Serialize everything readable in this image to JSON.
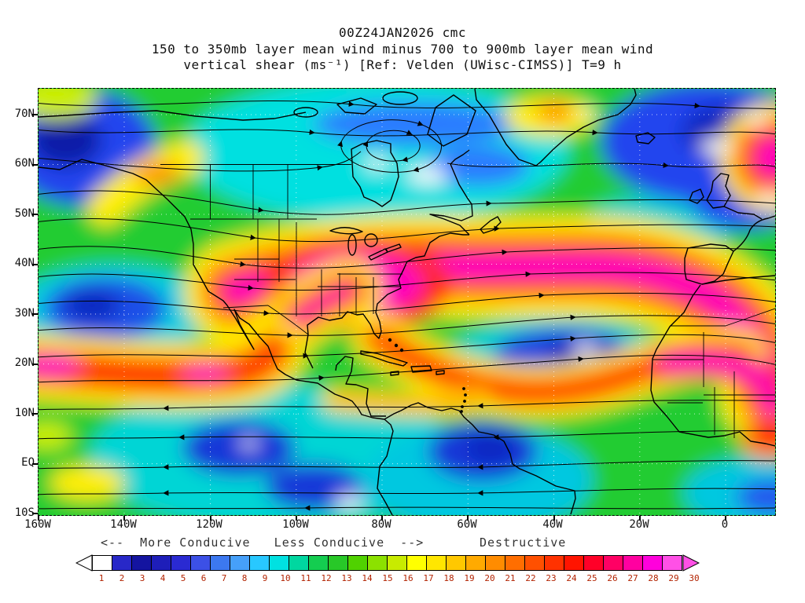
{
  "header": {
    "line1": "00Z24JAN2026 cmc",
    "line2": "150 to 350mb layer mean wind minus 700 to 900mb layer mean wind",
    "line3": "vertical shear (ms⁻¹) [Ref: Velden (UWisc-CIMSS)] T=9 h"
  },
  "map": {
    "lat_ticks": [
      "70N",
      "60N",
      "50N",
      "40N",
      "30N",
      "20N",
      "10N",
      "EQ",
      "10S"
    ],
    "lon_ticks": [
      "160W",
      "140W",
      "120W",
      "100W",
      "80W",
      "60W",
      "40W",
      "20W",
      "0"
    ]
  },
  "legend": {
    "conducive": "<--  More Conducive   Less Conducive  -->",
    "destructive": "Destructive"
  },
  "colorbar": {
    "values": [
      "1",
      "2",
      "3",
      "4",
      "5",
      "6",
      "7",
      "8",
      "9",
      "10",
      "11",
      "12",
      "13",
      "14",
      "15",
      "16",
      "17",
      "18",
      "19",
      "20",
      "21",
      "22",
      "23",
      "24",
      "25",
      "26",
      "27",
      "28",
      "29",
      "30"
    ],
    "colors": [
      "#ffffff",
      "#2828c8",
      "#1414a0",
      "#1e1eb9",
      "#2a2ad2",
      "#3c50e6",
      "#3c78f0",
      "#46a0fa",
      "#28c8ff",
      "#00e1e1",
      "#00d7a0",
      "#14cd50",
      "#28c828",
      "#50d200",
      "#8ce100",
      "#c8eb00",
      "#ffff00",
      "#ffe600",
      "#ffc800",
      "#ffaa00",
      "#ff8c00",
      "#ff6e00",
      "#ff5000",
      "#ff3200",
      "#ff1400",
      "#ff0028",
      "#ff0064",
      "#ff00a0",
      "#ff00dc",
      "#ff50e6"
    ],
    "left_arrow_color": "#ffffff",
    "right_arrow_color": "#ff50e6"
  },
  "chart_data": {
    "type": "heatmap",
    "title": "150 to 350mb layer mean wind minus 700 to 900mb layer mean wind vertical shear (ms⁻¹)",
    "run": "00Z24JAN2026",
    "model": "cmc",
    "forecast_hour": "T=9 h",
    "reference": "Velden (UWisc-CIMSS)",
    "units": "ms⁻¹",
    "x_axis": {
      "label": "longitude",
      "ticks": [
        "160W",
        "140W",
        "120W",
        "100W",
        "80W",
        "60W",
        "40W",
        "20W",
        "0"
      ],
      "range_deg_east": [
        -160,
        11
      ]
    },
    "y_axis": {
      "label": "latitude",
      "ticks": [
        "70N",
        "60N",
        "50N",
        "40N",
        "30N",
        "20N",
        "10N",
        "EQ",
        "10S"
      ],
      "range_deg_north": [
        -10,
        75
      ]
    },
    "scale": {
      "min": 1,
      "max": 30,
      "values": [
        1,
        2,
        3,
        4,
        5,
        6,
        7,
        8,
        9,
        10,
        11,
        12,
        13,
        14,
        15,
        16,
        17,
        18,
        19,
        20,
        21,
        22,
        23,
        24,
        25,
        26,
        27,
        28,
        29,
        30
      ],
      "colors": [
        "#ffffff",
        "#2828c8",
        "#1414a0",
        "#1e1eb9",
        "#2a2ad2",
        "#3c50e6",
        "#3c78f0",
        "#46a0fa",
        "#28c8ff",
        "#00e1e1",
        "#00d7a0",
        "#14cd50",
        "#28c828",
        "#50d200",
        "#8ce100",
        "#c8eb00",
        "#ffff00",
        "#ffe600",
        "#ffc800",
        "#ffaa00",
        "#ff8c00",
        "#ff6e00",
        "#ff5000",
        "#ff3200",
        "#ff1400",
        "#ff0028",
        "#ff0064",
        "#ff00a0",
        "#ff00dc",
        "#ff50e6"
      ]
    },
    "regime_annotations": [
      {
        "label": "<-- More Conducive",
        "applies_to_values": "1-9"
      },
      {
        "label": "Less Conducive -->",
        "applies_to_values": "10-17"
      },
      {
        "label": "Destructive",
        "applies_to_values": "18-30"
      }
    ],
    "overlay": "layer-shear streamlines with arrowheads, coastlines, state and country borders, dotted 10-degree graticule",
    "features": [
      {
        "region": "central US across North Atlantic 33-45N to NW Africa (subtropical jet)",
        "approx_shear_ms": "26-30+"
      },
      {
        "region": "West Africa coast 8-25N near 0-10E",
        "approx_shear_ms": "24-30"
      },
      {
        "region": "NE Pacific band 15-20N, 160W-115W",
        "approx_shear_ms": "18-30"
      },
      {
        "region": "mid-Atlantic dip 15-22N connecting Florida to Africa",
        "approx_shear_ms": "17-24"
      },
      {
        "region": "Gulf of Alaska / NE Pacific 55-70N",
        "approx_shear_ms": "2-8"
      },
      {
        "region": "central Canada and Hudson Bay",
        "approx_shear_ms": "1-10"
      },
      {
        "region": "NE Atlantic 55-75N (with small off-scale-low white pockets)",
        "approx_shear_ms": "1-8"
      },
      {
        "region": "subtropical central Atlantic 22-28N",
        "approx_shear_ms": "1-6"
      },
      {
        "region": "eastern tropical Pacific 0-10N",
        "approx_shear_ms": "2-8"
      },
      {
        "region": "northern South America / SW Caribbean",
        "approx_shear_ms": "2-10"
      },
      {
        "region": "North Pacific 28-33N near 145W",
        "approx_shear_ms": "3-7"
      },
      {
        "region": "far NE edge ~60N 0-10E",
        "approx_shear_ms": "25-30"
      }
    ]
  }
}
